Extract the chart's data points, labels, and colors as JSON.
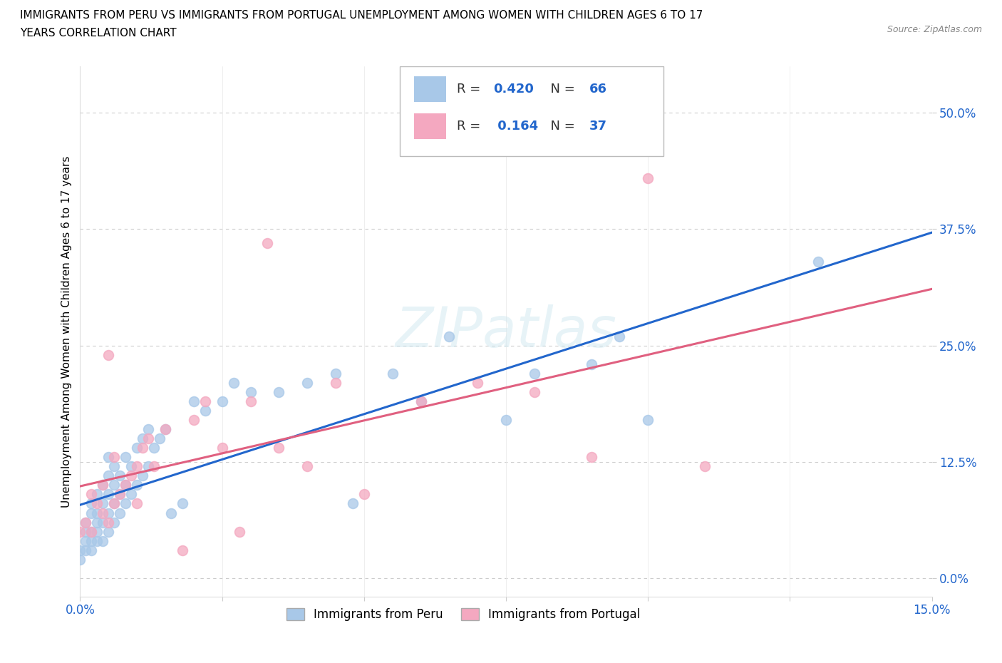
{
  "title_line1": "IMMIGRANTS FROM PERU VS IMMIGRANTS FROM PORTUGAL UNEMPLOYMENT AMONG WOMEN WITH CHILDREN AGES 6 TO 17",
  "title_line2": "YEARS CORRELATION CHART",
  "source": "Source: ZipAtlas.com",
  "ylabel": "Unemployment Among Women with Children Ages 6 to 17 years",
  "xlim": [
    0.0,
    0.15
  ],
  "ylim": [
    -0.02,
    0.55
  ],
  "yticks": [
    0.0,
    0.125,
    0.25,
    0.375,
    0.5
  ],
  "yticklabels": [
    "0.0%",
    "12.5%",
    "25.0%",
    "37.5%",
    "50.0%"
  ],
  "xtick_positions": [
    0.0,
    0.025,
    0.05,
    0.075,
    0.1,
    0.125,
    0.15
  ],
  "xticklabels": [
    "0.0%",
    "",
    "",
    "",
    "",
    "",
    "15.0%"
  ],
  "peru_color": "#a8c8e8",
  "portugal_color": "#f4a8c0",
  "peru_line_color": "#2266cc",
  "portugal_line_color": "#e06080",
  "tick_label_color": "#2266cc",
  "peru_R": 0.42,
  "peru_N": 66,
  "portugal_R": 0.164,
  "portugal_N": 37,
  "watermark": "ZIPatlas",
  "peru_x": [
    0.0,
    0.0,
    0.001,
    0.001,
    0.001,
    0.001,
    0.002,
    0.002,
    0.002,
    0.002,
    0.002,
    0.003,
    0.003,
    0.003,
    0.003,
    0.003,
    0.004,
    0.004,
    0.004,
    0.004,
    0.005,
    0.005,
    0.005,
    0.005,
    0.005,
    0.006,
    0.006,
    0.006,
    0.006,
    0.007,
    0.007,
    0.007,
    0.008,
    0.008,
    0.008,
    0.009,
    0.009,
    0.01,
    0.01,
    0.011,
    0.011,
    0.012,
    0.012,
    0.013,
    0.014,
    0.015,
    0.016,
    0.018,
    0.02,
    0.022,
    0.025,
    0.027,
    0.03,
    0.035,
    0.04,
    0.045,
    0.048,
    0.055,
    0.06,
    0.065,
    0.075,
    0.08,
    0.09,
    0.095,
    0.1,
    0.13
  ],
  "peru_y": [
    0.02,
    0.03,
    0.03,
    0.04,
    0.05,
    0.06,
    0.03,
    0.04,
    0.05,
    0.07,
    0.08,
    0.04,
    0.05,
    0.06,
    0.07,
    0.09,
    0.04,
    0.06,
    0.08,
    0.1,
    0.05,
    0.07,
    0.09,
    0.11,
    0.13,
    0.06,
    0.08,
    0.1,
    0.12,
    0.07,
    0.09,
    0.11,
    0.08,
    0.1,
    0.13,
    0.09,
    0.12,
    0.1,
    0.14,
    0.11,
    0.15,
    0.12,
    0.16,
    0.14,
    0.15,
    0.16,
    0.07,
    0.08,
    0.19,
    0.18,
    0.19,
    0.21,
    0.2,
    0.2,
    0.21,
    0.22,
    0.08,
    0.22,
    0.19,
    0.26,
    0.17,
    0.22,
    0.23,
    0.26,
    0.17,
    0.34
  ],
  "portugal_x": [
    0.0,
    0.001,
    0.002,
    0.002,
    0.003,
    0.004,
    0.004,
    0.005,
    0.005,
    0.006,
    0.006,
    0.007,
    0.008,
    0.009,
    0.01,
    0.01,
    0.011,
    0.012,
    0.013,
    0.015,
    0.018,
    0.02,
    0.022,
    0.025,
    0.028,
    0.03,
    0.033,
    0.035,
    0.04,
    0.045,
    0.05,
    0.06,
    0.07,
    0.08,
    0.09,
    0.1,
    0.11
  ],
  "portugal_y": [
    0.05,
    0.06,
    0.05,
    0.09,
    0.08,
    0.07,
    0.1,
    0.06,
    0.24,
    0.08,
    0.13,
    0.09,
    0.1,
    0.11,
    0.08,
    0.12,
    0.14,
    0.15,
    0.12,
    0.16,
    0.03,
    0.17,
    0.19,
    0.14,
    0.05,
    0.19,
    0.36,
    0.14,
    0.12,
    0.21,
    0.09,
    0.19,
    0.21,
    0.2,
    0.13,
    0.43,
    0.12
  ]
}
